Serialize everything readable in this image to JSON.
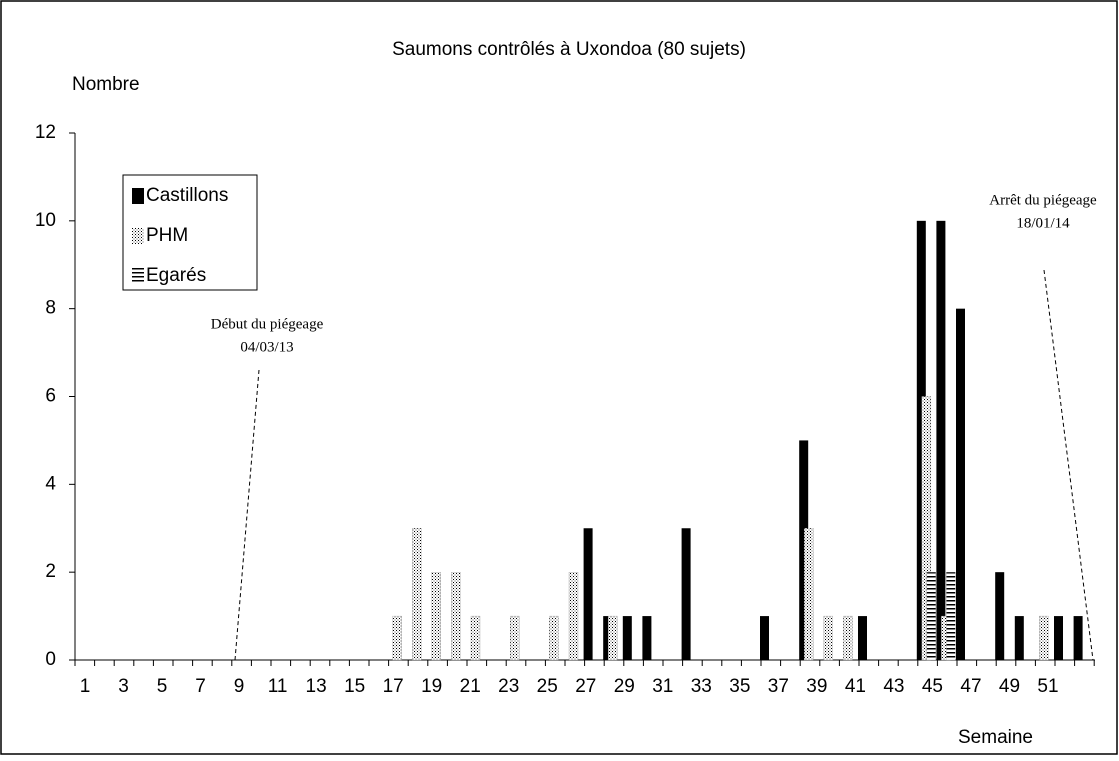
{
  "chart_data": {
    "type": "bar",
    "title": "Saumons contrôlés à Uxondoa (80 sujets)",
    "y_label": "Nombre",
    "x_label": "Semaine",
    "categories": [
      1,
      null,
      3,
      null,
      5,
      null,
      7,
      null,
      9,
      null,
      11,
      null,
      13,
      null,
      15,
      null,
      17,
      null,
      19,
      null,
      21,
      null,
      23,
      null,
      25,
      null,
      27,
      null,
      29,
      null,
      31,
      null,
      33,
      null,
      35,
      null,
      37,
      null,
      39,
      null,
      41,
      null,
      43,
      null,
      45,
      null,
      47,
      null,
      49,
      null,
      51,
      null
    ],
    "series": [
      {
        "name": "Castillons",
        "color": "#000000",
        "pattern": "solid",
        "values": [
          0,
          0,
          0,
          0,
          0,
          0,
          0,
          0,
          0,
          0,
          0,
          0,
          0,
          0,
          0,
          0,
          0,
          0,
          0,
          0,
          0,
          0,
          0,
          0,
          0,
          0,
          3,
          1,
          1,
          1,
          0,
          3,
          0,
          0,
          0,
          1,
          0,
          5,
          0,
          0,
          1,
          0,
          0,
          10,
          10,
          8,
          0,
          2,
          1,
          0,
          1,
          1
        ]
      },
      {
        "name": "PHM",
        "color": "#000000",
        "pattern": "dots",
        "values": [
          0,
          0,
          0,
          0,
          0,
          0,
          0,
          0,
          0,
          0,
          0,
          0,
          0,
          0,
          0,
          0,
          1,
          3,
          2,
          2,
          1,
          0,
          1,
          0,
          1,
          2,
          0,
          1,
          0,
          0,
          0,
          0,
          0,
          0,
          0,
          0,
          0,
          3,
          1,
          1,
          0,
          0,
          0,
          6,
          1,
          0,
          0,
          0,
          0,
          1,
          0,
          0
        ]
      },
      {
        "name": "Egarés",
        "color": "#000000",
        "pattern": "hlines",
        "values": [
          0,
          0,
          0,
          0,
          0,
          0,
          0,
          0,
          0,
          0,
          0,
          0,
          0,
          0,
          0,
          0,
          0,
          0,
          0,
          0,
          0,
          0,
          0,
          0,
          0,
          0,
          0,
          0,
          0,
          0,
          0,
          0,
          0,
          0,
          0,
          0,
          0,
          0,
          0,
          0,
          0,
          0,
          0,
          2,
          2,
          0,
          0,
          0,
          0,
          0,
          0,
          0
        ]
      }
    ],
    "ylim": [
      0,
      12
    ],
    "yticks": [
      0,
      2,
      4,
      6,
      8,
      10,
      12
    ],
    "grid": false,
    "legend": "upper left",
    "annotations": [
      {
        "lines": [
          "Début du piégeage",
          "04/03/13"
        ]
      },
      {
        "lines": [
          "Arrêt du piégeage",
          "18/01/14"
        ]
      }
    ]
  }
}
